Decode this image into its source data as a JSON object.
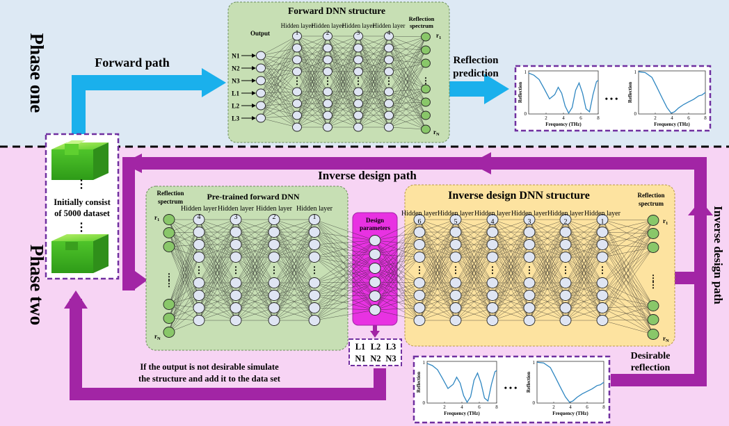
{
  "phase_one": {
    "label": "Phase one"
  },
  "phase_two": {
    "label": "Phase two"
  },
  "forward_dnn": {
    "title": "Forward DNN structure",
    "output_label": "Output",
    "inputs": [
      "N1",
      "N2",
      "N3",
      "L1",
      "L2",
      "L3"
    ],
    "hidden_layers": [
      "Hidden layer 1",
      "Hidden layer 2",
      "Hidden layer 3",
      "Hidden layer 4"
    ],
    "spectrum_label": "Reflection spectrum",
    "r_first": "r1",
    "r_last": "rN"
  },
  "forward_path": {
    "label": "Forward path"
  },
  "reflection_prediction": {
    "label": "Reflection prediction"
  },
  "dataset": {
    "label_line1": "Initially consist",
    "label_line2": "of 5000 dataset"
  },
  "inverse_path_top": {
    "label": "Inverse design path"
  },
  "inverse_path_right": {
    "label": "Inverse design path"
  },
  "pretrained_dnn": {
    "title": "Pre-trained forward DNN",
    "spectrum_label": "Reflection spectrum",
    "hidden_layers": [
      "Hidden layer 4",
      "Hidden layer 3",
      "Hidden layer 2",
      "Hidden layer 1"
    ],
    "r_first": "r1",
    "r_last": "rN"
  },
  "design_parameters": {
    "label": "Design parameters",
    "row1": [
      "L1",
      "L2",
      "L3"
    ],
    "row2": [
      "N1",
      "N2",
      "N3"
    ]
  },
  "inverse_dnn": {
    "title": "Inverse design DNN structure",
    "hidden_layers": [
      "Hidden layer 6",
      "Hidden layer 5",
      "Hidden layer 4",
      "Hidden layer 3",
      "Hidden layer 2",
      "Hidden layer 1"
    ],
    "spectrum_label": "Reflection spectrum",
    "r_first": "r1",
    "r_last": "rN"
  },
  "feedback": {
    "line1": "If the output is not desirable simulate",
    "line2": "the structure and add it to the data set"
  },
  "desirable_reflection": {
    "line1": "Desirable",
    "line2": "reflection"
  },
  "plot_axes": {
    "xlabel": "Frequency (THz)",
    "ylabel": "Reflection",
    "x_ticks": [
      "2",
      "4",
      "6",
      "8"
    ],
    "y_ticks": [
      "0",
      "1"
    ],
    "ellipsis": "• • •"
  },
  "colors": {
    "phase_one_bg": "#dde9f4",
    "phase_two_bg": "#f7d4f4",
    "forward_box": "#c7dfb4",
    "inverse_box": "#fde3a0",
    "arrow_blue": "#1ab0ec",
    "arrow_purple": "#a225a5",
    "design_box": "#e832e2",
    "node_fill": "#dfe5f3",
    "spectrum_node_fill": "#89c769",
    "curve": "#2e86c1",
    "dash_purple": "#7030a0"
  }
}
